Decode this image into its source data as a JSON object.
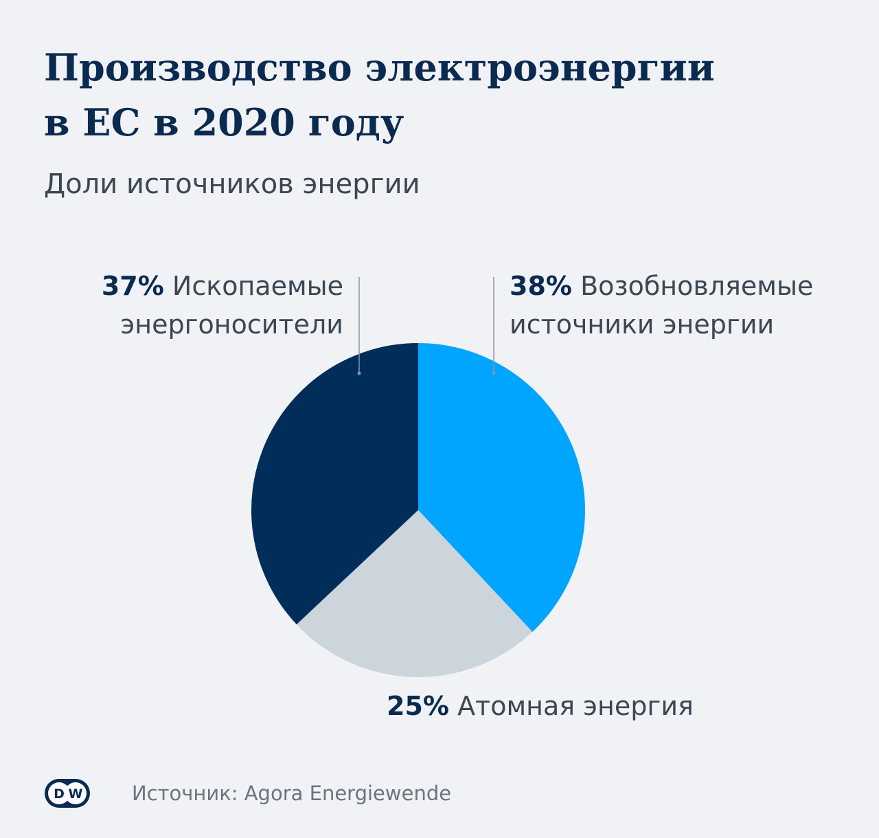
{
  "title": {
    "line1": "Производство электроэнергии",
    "line2": "в ЕС в 2020 году"
  },
  "subtitle": "Доли источников энергии",
  "chart_data": {
    "type": "pie",
    "title": "Производство электроэнергии в ЕС в 2020 году",
    "subtitle": "Доли источников энергии",
    "slices": [
      {
        "key": "renewable",
        "percent_label": "38%",
        "name_lines": [
          "Возобновляемые",
          "источники энергии"
        ],
        "value": 38,
        "color": "#00a5ff"
      },
      {
        "key": "nuclear",
        "percent_label": "25%",
        "name_lines": [
          "Атомная энергия"
        ],
        "value": 25,
        "color": "#ccd4dc"
      },
      {
        "key": "fossil",
        "percent_label": "37%",
        "name_lines": [
          "Ископаемые",
          "энергоносители"
        ],
        "value": 37,
        "color": "#002d5a"
      }
    ]
  },
  "footer": {
    "logo": "DW",
    "source": "Источник: Agora Energiewende"
  },
  "colors": {
    "background": "#f0f2f5",
    "title": "#0b2a50",
    "text": "#3c4754",
    "source": "#6b7480",
    "leader": "#8a95a3"
  }
}
